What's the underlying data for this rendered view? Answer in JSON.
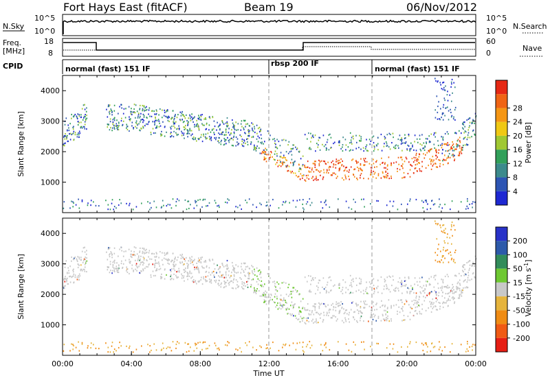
{
  "header": {
    "station": "Fort Hays East (fitACF)",
    "beam": "Beam 19",
    "date": "06/Nov/2012"
  },
  "strip_labels": {
    "nsky": "N.Sky",
    "nsearch": "N.Search",
    "freq_line1": "Freq.",
    "freq_line2": "[MHz]",
    "nave": "Nave",
    "cpid": "CPID"
  },
  "strip_ticks": {
    "nsky_left": [
      "10^5",
      "10^0"
    ],
    "nsky_right": [
      "10^5",
      "10^0"
    ],
    "freq_left": [
      "18",
      "8"
    ],
    "nave_right": [
      "60",
      "0"
    ]
  },
  "cpid_segments": [
    {
      "label": "normal (fast) 151 IF",
      "start_hour": 0
    },
    {
      "label": "rbsp 200 IF",
      "start_hour": 12
    },
    {
      "label": "normal (fast) 151 IF",
      "start_hour": 18
    }
  ],
  "chart_data": [
    {
      "type": "heatmap",
      "panel": "power",
      "x_range_hours": [
        0,
        24
      ],
      "ylim": [
        0,
        4500
      ],
      "ylabel": "Slant Range [km]",
      "yticks": [
        "1000",
        "2000",
        "3000",
        "4000"
      ],
      "colorbar_label": "Power [dB]",
      "colorbar_ticks": [
        "4",
        "8",
        "12",
        "16",
        "20",
        "24",
        "28"
      ],
      "colors": [
        "#1e28d2",
        "#2d55b4",
        "#3c8a8c",
        "#32a05a",
        "#a0c832",
        "#f0c814",
        "#f59614",
        "#f06414",
        "#e62814"
      ],
      "scatter_layer": {
        "center_km": 2600,
        "upper_km": 3300
      },
      "strong_layer": {
        "center_km": 1300
      }
    },
    {
      "type": "heatmap",
      "panel": "velocity",
      "x_range_hours": [
        0,
        24
      ],
      "ylim": [
        0,
        4500
      ],
      "ylabel": "Slant Range [km]",
      "yticks": [
        "1000",
        "2000",
        "3000",
        "4000"
      ],
      "colorbar_label": "Velocity [m s^-1]",
      "colorbar_ticks": [
        "200",
        "100",
        "50",
        "15",
        "-15",
        "-50",
        "-100",
        "-200"
      ],
      "colors": [
        "#2832c8",
        "#2d5aaa",
        "#328c5a",
        "#6ec832",
        "#c8c8c8",
        "#e6b43c",
        "#f08c14",
        "#f05a14",
        "#e61e14"
      ]
    }
  ],
  "time_axis": {
    "xlabel": "Time UT",
    "ticks": [
      "00:00",
      "04:00",
      "08:00",
      "12:00",
      "16:00",
      "20:00",
      "00:00"
    ]
  }
}
